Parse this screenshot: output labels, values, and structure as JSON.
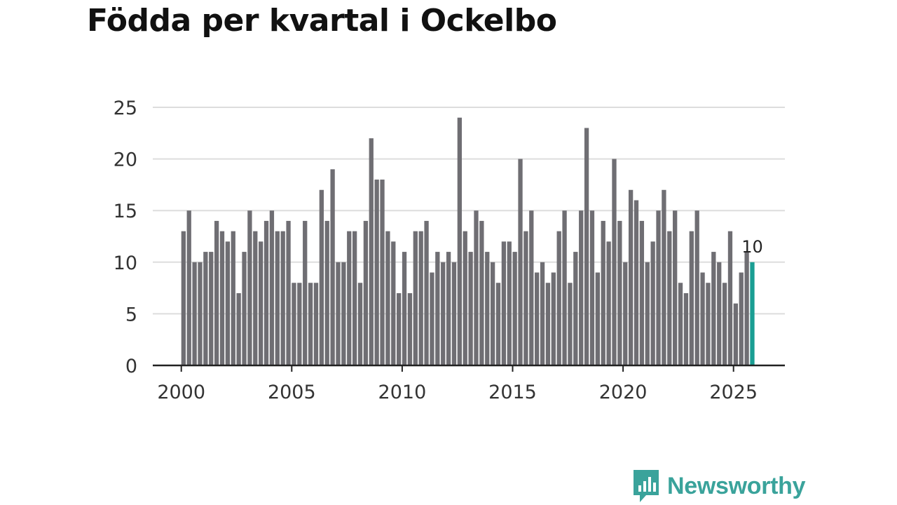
{
  "title": "Födda per kvartal i Ockelbo",
  "brand": {
    "name": "Newsworthy",
    "color": "#3aa39b"
  },
  "colors": {
    "bar": "#6f6e73",
    "highlight": "#1a9e93",
    "grid": "#dddddd",
    "axis": "#222222"
  },
  "chart_data": {
    "type": "bar",
    "title": "Födda per kvartal i Ockelbo",
    "xlabel": "",
    "ylabel": "",
    "ylim": [
      0,
      25
    ],
    "yticks": [
      0,
      5,
      10,
      15,
      20,
      25
    ],
    "xticks": [
      "2000",
      "2005",
      "2010",
      "2015",
      "2020",
      "2025"
    ],
    "start_year": 2000,
    "periods_per_year": 4,
    "values": [
      13,
      15,
      10,
      10,
      11,
      11,
      14,
      13,
      12,
      13,
      7,
      11,
      15,
      13,
      12,
      14,
      15,
      13,
      13,
      14,
      8,
      8,
      14,
      8,
      8,
      17,
      14,
      19,
      10,
      10,
      13,
      13,
      8,
      14,
      22,
      18,
      18,
      13,
      12,
      7,
      11,
      7,
      13,
      13,
      14,
      9,
      11,
      10,
      11,
      10,
      24,
      13,
      11,
      15,
      14,
      11,
      10,
      8,
      12,
      12,
      11,
      20,
      13,
      15,
      9,
      10,
      8,
      9,
      13,
      15,
      8,
      11,
      15,
      23,
      15,
      9,
      14,
      12,
      20,
      14,
      10,
      17,
      16,
      14,
      10,
      12,
      15,
      17,
      13,
      15,
      8,
      7,
      13,
      15,
      9,
      8,
      11,
      10,
      8,
      13,
      6,
      9,
      11,
      10
    ],
    "highlight_index": 103,
    "highlight_label": "10"
  }
}
